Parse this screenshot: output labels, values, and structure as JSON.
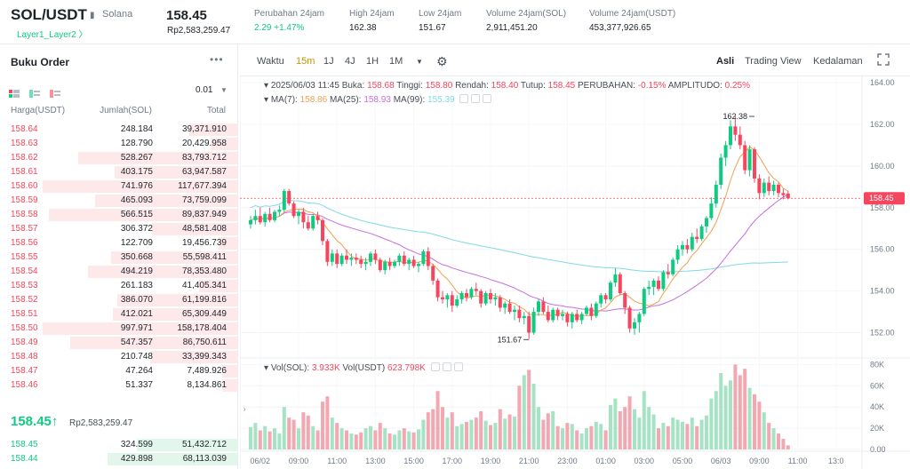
{
  "header": {
    "pair": "SOL/USDT",
    "name": "Solana",
    "tag": "Layer1_Layer2 〉",
    "price": "158.45",
    "price_idr": "Rp2,583,259.47",
    "stats": [
      {
        "label": "Perubahan 24jam",
        "value": "2.29 +1.47%",
        "color": "#0ecb81"
      },
      {
        "label": "High 24jam",
        "value": "162.38",
        "color": "#1e2329"
      },
      {
        "label": "Low 24jam",
        "value": "151.67",
        "color": "#1e2329"
      },
      {
        "label": "Volume 24jam(SOL)",
        "value": "2,911,451.20",
        "color": "#1e2329"
      },
      {
        "label": "Volume 24jam(USDT)",
        "value": "453,377,926.65",
        "color": "#1e2329"
      }
    ]
  },
  "orderbook": {
    "title": "Buku Order",
    "more": "•••",
    "precision": "0.01",
    "col_price": "Harga(USDT)",
    "col_amount": "Jumlah(SOL)",
    "col_total": "Total",
    "asks": [
      {
        "p": "158.64",
        "a": "248.184",
        "t": "39,371.910",
        "d": 0.25
      },
      {
        "p": "158.63",
        "a": "128.790",
        "t": "20,429.958",
        "d": 0.14
      },
      {
        "p": "158.62",
        "a": "528.267",
        "t": "83,793.712",
        "d": 0.82
      },
      {
        "p": "158.61",
        "a": "403.175",
        "t": "63,947.587",
        "d": 0.63
      },
      {
        "p": "158.60",
        "a": "741.976",
        "t": "117,677.394",
        "d": 1.0
      },
      {
        "p": "158.59",
        "a": "465.093",
        "t": "73,759.099",
        "d": 0.73
      },
      {
        "p": "158.58",
        "a": "566.515",
        "t": "89,837.949",
        "d": 0.97
      },
      {
        "p": "158.57",
        "a": "306.372",
        "t": "48,581.408",
        "d": 0.44
      },
      {
        "p": "158.56",
        "a": "122.709",
        "t": "19,456.739",
        "d": 0.1
      },
      {
        "p": "158.55",
        "a": "350.668",
        "t": "55,598.411",
        "d": 0.65
      },
      {
        "p": "158.54",
        "a": "494.219",
        "t": "78,353.480",
        "d": 0.77
      },
      {
        "p": "158.53",
        "a": "261.183",
        "t": "41,405.341",
        "d": 0.2
      },
      {
        "p": "158.52",
        "a": "386.070",
        "t": "61,199.816",
        "d": 0.62
      },
      {
        "p": "158.51",
        "a": "412.021",
        "t": "65,309.449",
        "d": 0.64
      },
      {
        "p": "158.50",
        "a": "997.971",
        "t": "158,178.404",
        "d": 1.0
      },
      {
        "p": "158.49",
        "a": "547.357",
        "t": "86,750.611",
        "d": 0.86
      },
      {
        "p": "158.48",
        "a": "210.748",
        "t": "33,399.343",
        "d": 0.45
      },
      {
        "p": "158.47",
        "a": "47.264",
        "t": "7,489.926",
        "d": 0.08
      },
      {
        "p": "158.46",
        "a": "51.337",
        "t": "8,134.861",
        "d": 0.08
      }
    ],
    "last_price": "158.45↑",
    "last_price_idr": "Rp2,583,259.47",
    "bids": [
      {
        "p": "158.45",
        "a": "324.599",
        "t": "51,432.712",
        "d": 0.52
      },
      {
        "p": "158.44",
        "a": "429.898",
        "t": "68,113.039",
        "d": 0.67
      }
    ]
  },
  "toolbar": {
    "time_label": "Waktu",
    "intervals": [
      "15m",
      "1J",
      "4J",
      "1H",
      "1M"
    ],
    "active_interval": "15m",
    "views": [
      "Asli",
      "Trading View",
      "Kedalaman"
    ],
    "active_view": "Asli"
  },
  "chart_data": {
    "type": "candlestick",
    "ohlc_label": {
      "date": "2025/06/03 11:45",
      "open_label": "Buka:",
      "open": "158.68",
      "high_label": "Tinggi:",
      "high": "158.80",
      "low_label": "Rendah:",
      "low": "158.40",
      "close_label": "Tutup:",
      "close": "158.45",
      "change_label": "PERUBAHAN:",
      "change": "-0.15%",
      "amp_label": "AMPLITUDO:",
      "amp": "0.25%"
    },
    "ma": [
      {
        "label": "MA(7):",
        "value": "158.86",
        "color": "#f0a050"
      },
      {
        "label": "MA(25):",
        "value": "158.93",
        "color": "#c86ee0"
      },
      {
        "label": "MA(99):",
        "value": "155.39",
        "color": "#7fd9e6"
      }
    ],
    "vol_label": {
      "sol_label": "Vol(SOL):",
      "sol": "3.933K",
      "usdt_label": "Vol(USDT)",
      "usdt": "623.798K"
    },
    "price_axis": [
      "164.00",
      "162.00",
      "160.00",
      "158.00",
      "156.00",
      "154.00",
      "152.00"
    ],
    "price_ticks": [
      164,
      162,
      160,
      158,
      156,
      154,
      152
    ],
    "price_range": [
      151.0,
      164.3
    ],
    "vol_axis": [
      "80K",
      "60K",
      "40K",
      "20K",
      "0.00"
    ],
    "vol_ticks": [
      80000,
      60000,
      40000,
      20000,
      0
    ],
    "vol_range": [
      0,
      82000
    ],
    "time_axis": [
      "06/02",
      "09:00",
      "11:00",
      "13:00",
      "15:00",
      "17:00",
      "19:00",
      "21:00",
      "23:00",
      "01:00",
      "03:00",
      "05:00",
      "06/03",
      "09:00",
      "11:00",
      "13:0"
    ],
    "time_tick_candle": [
      2,
      10,
      18,
      26,
      34,
      42,
      50,
      58,
      66,
      74,
      82,
      90,
      98,
      106,
      114,
      122
    ],
    "current_price": "158.45",
    "current_price_value": 158.45,
    "high_mark": "162.38",
    "high_mark_index": 105,
    "high_mark_value": 162.38,
    "low_mark": "151.67",
    "low_mark_index": 58,
    "low_mark_value": 151.67,
    "ma99_end": 155.39,
    "candles": [
      {
        "o": 157.2,
        "h": 157.6,
        "l": 157.0,
        "c": 157.4,
        "v": 21000
      },
      {
        "o": 157.4,
        "h": 157.9,
        "l": 157.2,
        "c": 157.6,
        "v": 25000
      },
      {
        "o": 157.6,
        "h": 158.0,
        "l": 157.2,
        "c": 157.3,
        "v": 18000
      },
      {
        "o": 157.3,
        "h": 157.8,
        "l": 157.1,
        "c": 157.7,
        "v": 22000
      },
      {
        "o": 157.7,
        "h": 158.0,
        "l": 157.3,
        "c": 157.4,
        "v": 17000
      },
      {
        "o": 157.4,
        "h": 157.9,
        "l": 157.3,
        "c": 157.8,
        "v": 20000
      },
      {
        "o": 157.8,
        "h": 158.1,
        "l": 157.6,
        "c": 157.9,
        "v": 15000
      },
      {
        "o": 157.9,
        "h": 158.9,
        "l": 157.8,
        "c": 158.8,
        "v": 40000
      },
      {
        "o": 158.8,
        "h": 158.9,
        "l": 158.1,
        "c": 158.2,
        "v": 30000
      },
      {
        "o": 158.2,
        "h": 158.3,
        "l": 157.5,
        "c": 157.6,
        "v": 28000
      },
      {
        "o": 157.6,
        "h": 157.9,
        "l": 157.2,
        "c": 157.8,
        "v": 20000
      },
      {
        "o": 157.8,
        "h": 158.0,
        "l": 157.0,
        "c": 157.3,
        "v": 35000
      },
      {
        "o": 157.3,
        "h": 157.6,
        "l": 156.9,
        "c": 157.0,
        "v": 32000
      },
      {
        "o": 157.0,
        "h": 157.7,
        "l": 156.9,
        "c": 157.6,
        "v": 22000
      },
      {
        "o": 157.6,
        "h": 157.8,
        "l": 157.2,
        "c": 157.4,
        "v": 18000
      },
      {
        "o": 157.4,
        "h": 157.5,
        "l": 156.2,
        "c": 156.4,
        "v": 45000
      },
      {
        "o": 156.4,
        "h": 156.5,
        "l": 155.2,
        "c": 155.4,
        "v": 50000
      },
      {
        "o": 155.4,
        "h": 156.0,
        "l": 155.2,
        "c": 155.8,
        "v": 30000
      },
      {
        "o": 155.8,
        "h": 156.0,
        "l": 155.1,
        "c": 155.3,
        "v": 25000
      },
      {
        "o": 155.3,
        "h": 155.8,
        "l": 155.2,
        "c": 155.7,
        "v": 20000
      },
      {
        "o": 155.7,
        "h": 156.0,
        "l": 155.3,
        "c": 155.5,
        "v": 18000
      },
      {
        "o": 155.5,
        "h": 155.8,
        "l": 155.2,
        "c": 155.6,
        "v": 15000
      },
      {
        "o": 155.6,
        "h": 155.8,
        "l": 155.3,
        "c": 155.5,
        "v": 14000
      },
      {
        "o": 155.5,
        "h": 155.7,
        "l": 155.1,
        "c": 155.3,
        "v": 16000
      },
      {
        "o": 155.3,
        "h": 155.6,
        "l": 155.0,
        "c": 155.4,
        "v": 20000
      },
      {
        "o": 155.4,
        "h": 155.9,
        "l": 155.2,
        "c": 155.8,
        "v": 22000
      },
      {
        "o": 155.8,
        "h": 156.0,
        "l": 155.3,
        "c": 155.5,
        "v": 18000
      },
      {
        "o": 155.5,
        "h": 155.6,
        "l": 154.9,
        "c": 155.0,
        "v": 25000
      },
      {
        "o": 155.0,
        "h": 155.5,
        "l": 154.8,
        "c": 155.4,
        "v": 20000
      },
      {
        "o": 155.4,
        "h": 155.6,
        "l": 155.0,
        "c": 155.2,
        "v": 15000
      },
      {
        "o": 155.2,
        "h": 155.5,
        "l": 155.1,
        "c": 155.4,
        "v": 14000
      },
      {
        "o": 155.4,
        "h": 155.8,
        "l": 155.2,
        "c": 155.7,
        "v": 18000
      },
      {
        "o": 155.7,
        "h": 155.9,
        "l": 155.2,
        "c": 155.3,
        "v": 20000
      },
      {
        "o": 155.3,
        "h": 155.6,
        "l": 155.0,
        "c": 155.5,
        "v": 17000
      },
      {
        "o": 155.5,
        "h": 155.7,
        "l": 155.1,
        "c": 155.2,
        "v": 16000
      },
      {
        "o": 155.2,
        "h": 155.4,
        "l": 154.9,
        "c": 155.3,
        "v": 19000
      },
      {
        "o": 155.3,
        "h": 156.0,
        "l": 155.2,
        "c": 155.9,
        "v": 28000
      },
      {
        "o": 155.9,
        "h": 156.1,
        "l": 155.0,
        "c": 155.2,
        "v": 35000
      },
      {
        "o": 155.2,
        "h": 155.3,
        "l": 154.3,
        "c": 154.5,
        "v": 38000
      },
      {
        "o": 154.5,
        "h": 154.6,
        "l": 153.5,
        "c": 153.7,
        "v": 55000
      },
      {
        "o": 153.7,
        "h": 154.0,
        "l": 153.4,
        "c": 153.6,
        "v": 40000
      },
      {
        "o": 153.6,
        "h": 153.9,
        "l": 153.2,
        "c": 153.8,
        "v": 30000
      },
      {
        "o": 153.8,
        "h": 154.0,
        "l": 153.0,
        "c": 153.3,
        "v": 35000
      },
      {
        "o": 153.3,
        "h": 153.8,
        "l": 153.2,
        "c": 153.6,
        "v": 22000
      },
      {
        "o": 153.6,
        "h": 154.0,
        "l": 153.4,
        "c": 153.9,
        "v": 24000
      },
      {
        "o": 153.9,
        "h": 154.1,
        "l": 153.5,
        "c": 153.7,
        "v": 26000
      },
      {
        "o": 153.7,
        "h": 154.2,
        "l": 153.6,
        "c": 154.1,
        "v": 28000
      },
      {
        "o": 154.1,
        "h": 154.4,
        "l": 153.8,
        "c": 154.0,
        "v": 30000
      },
      {
        "o": 154.0,
        "h": 154.1,
        "l": 153.2,
        "c": 153.4,
        "v": 36000
      },
      {
        "o": 153.4,
        "h": 154.0,
        "l": 153.3,
        "c": 153.9,
        "v": 27000
      },
      {
        "o": 153.9,
        "h": 154.1,
        "l": 153.4,
        "c": 153.6,
        "v": 23000
      },
      {
        "o": 153.6,
        "h": 153.9,
        "l": 153.3,
        "c": 153.7,
        "v": 25000
      },
      {
        "o": 153.7,
        "h": 153.8,
        "l": 153.0,
        "c": 153.2,
        "v": 38000
      },
      {
        "o": 153.2,
        "h": 153.5,
        "l": 152.9,
        "c": 153.4,
        "v": 29000
      },
      {
        "o": 153.4,
        "h": 153.6,
        "l": 152.9,
        "c": 153.0,
        "v": 33000
      },
      {
        "o": 153.0,
        "h": 153.3,
        "l": 152.6,
        "c": 153.1,
        "v": 31000
      },
      {
        "o": 153.1,
        "h": 153.3,
        "l": 152.5,
        "c": 152.7,
        "v": 60000
      },
      {
        "o": 152.7,
        "h": 153.0,
        "l": 152.4,
        "c": 152.8,
        "v": 70000
      },
      {
        "o": 152.8,
        "h": 153.0,
        "l": 151.7,
        "c": 152.0,
        "v": 75000
      },
      {
        "o": 152.0,
        "h": 153.2,
        "l": 151.9,
        "c": 153.0,
        "v": 62000
      },
      {
        "o": 153.0,
        "h": 153.6,
        "l": 152.8,
        "c": 153.5,
        "v": 40000
      },
      {
        "o": 153.5,
        "h": 153.7,
        "l": 152.9,
        "c": 153.0,
        "v": 28000
      },
      {
        "o": 153.0,
        "h": 153.3,
        "l": 152.5,
        "c": 152.6,
        "v": 34000
      },
      {
        "o": 152.6,
        "h": 153.2,
        "l": 152.5,
        "c": 153.1,
        "v": 36000
      },
      {
        "o": 153.1,
        "h": 153.2,
        "l": 152.6,
        "c": 152.8,
        "v": 22000
      },
      {
        "o": 152.8,
        "h": 153.1,
        "l": 152.6,
        "c": 152.9,
        "v": 20000
      },
      {
        "o": 152.9,
        "h": 153.0,
        "l": 152.3,
        "c": 152.5,
        "v": 25000
      },
      {
        "o": 152.5,
        "h": 153.0,
        "l": 152.2,
        "c": 152.9,
        "v": 24000
      },
      {
        "o": 152.9,
        "h": 153.1,
        "l": 152.5,
        "c": 152.6,
        "v": 18000
      },
      {
        "o": 152.6,
        "h": 153.0,
        "l": 152.4,
        "c": 152.9,
        "v": 15000
      },
      {
        "o": 152.9,
        "h": 153.3,
        "l": 152.8,
        "c": 153.2,
        "v": 20000
      },
      {
        "o": 153.2,
        "h": 153.4,
        "l": 152.6,
        "c": 152.8,
        "v": 22000
      },
      {
        "o": 152.8,
        "h": 153.5,
        "l": 152.7,
        "c": 153.4,
        "v": 26000
      },
      {
        "o": 153.4,
        "h": 153.9,
        "l": 153.2,
        "c": 153.8,
        "v": 24000
      },
      {
        "o": 153.8,
        "h": 153.9,
        "l": 153.4,
        "c": 153.6,
        "v": 18000
      },
      {
        "o": 153.6,
        "h": 154.5,
        "l": 153.5,
        "c": 154.4,
        "v": 42000
      },
      {
        "o": 154.4,
        "h": 155.1,
        "l": 154.2,
        "c": 154.8,
        "v": 48000
      },
      {
        "o": 154.8,
        "h": 154.9,
        "l": 153.8,
        "c": 153.9,
        "v": 36000
      },
      {
        "o": 153.9,
        "h": 154.0,
        "l": 152.9,
        "c": 153.2,
        "v": 40000
      },
      {
        "o": 153.2,
        "h": 153.3,
        "l": 152.0,
        "c": 152.2,
        "v": 50000
      },
      {
        "o": 152.2,
        "h": 152.7,
        "l": 151.9,
        "c": 152.5,
        "v": 38000
      },
      {
        "o": 152.5,
        "h": 153.0,
        "l": 152.0,
        "c": 152.9,
        "v": 30000
      },
      {
        "o": 152.9,
        "h": 154.2,
        "l": 152.8,
        "c": 154.1,
        "v": 55000
      },
      {
        "o": 154.1,
        "h": 154.5,
        "l": 153.8,
        "c": 154.2,
        "v": 40000
      },
      {
        "o": 154.2,
        "h": 154.6,
        "l": 153.8,
        "c": 154.5,
        "v": 33000
      },
      {
        "o": 154.5,
        "h": 154.7,
        "l": 154.0,
        "c": 154.1,
        "v": 20000
      },
      {
        "o": 154.1,
        "h": 155.0,
        "l": 154.0,
        "c": 154.9,
        "v": 25000
      },
      {
        "o": 154.9,
        "h": 155.3,
        "l": 154.6,
        "c": 154.8,
        "v": 22000
      },
      {
        "o": 154.8,
        "h": 155.6,
        "l": 154.7,
        "c": 155.5,
        "v": 30000
      },
      {
        "o": 155.5,
        "h": 156.2,
        "l": 155.3,
        "c": 156.0,
        "v": 28000
      },
      {
        "o": 156.0,
        "h": 156.4,
        "l": 155.7,
        "c": 156.2,
        "v": 26000
      },
      {
        "o": 156.2,
        "h": 156.5,
        "l": 155.8,
        "c": 156.0,
        "v": 24000
      },
      {
        "o": 156.0,
        "h": 156.8,
        "l": 155.9,
        "c": 156.6,
        "v": 30000
      },
      {
        "o": 156.6,
        "h": 157.0,
        "l": 156.3,
        "c": 156.5,
        "v": 22000
      },
      {
        "o": 156.5,
        "h": 157.2,
        "l": 156.4,
        "c": 157.1,
        "v": 28000
      },
      {
        "o": 157.1,
        "h": 157.6,
        "l": 156.8,
        "c": 157.5,
        "v": 32000
      },
      {
        "o": 157.5,
        "h": 158.5,
        "l": 157.4,
        "c": 158.2,
        "v": 48000
      },
      {
        "o": 158.2,
        "h": 159.3,
        "l": 158.0,
        "c": 159.1,
        "v": 55000
      },
      {
        "o": 159.1,
        "h": 160.6,
        "l": 158.9,
        "c": 160.4,
        "v": 72000
      },
      {
        "o": 160.4,
        "h": 161.2,
        "l": 160.0,
        "c": 161.0,
        "v": 60000
      },
      {
        "o": 161.0,
        "h": 162.2,
        "l": 160.8,
        "c": 161.9,
        "v": 65000
      },
      {
        "o": 161.9,
        "h": 162.38,
        "l": 161.2,
        "c": 161.5,
        "v": 80000
      },
      {
        "o": 161.5,
        "h": 161.9,
        "l": 160.8,
        "c": 161.0,
        "v": 70000
      },
      {
        "o": 161.0,
        "h": 161.2,
        "l": 159.6,
        "c": 159.8,
        "v": 76000
      },
      {
        "o": 159.8,
        "h": 161.0,
        "l": 159.5,
        "c": 160.8,
        "v": 58000
      },
      {
        "o": 160.8,
        "h": 160.9,
        "l": 159.2,
        "c": 159.4,
        "v": 52000
      },
      {
        "o": 159.4,
        "h": 159.6,
        "l": 158.4,
        "c": 158.7,
        "v": 45000
      },
      {
        "o": 158.7,
        "h": 159.4,
        "l": 158.5,
        "c": 159.2,
        "v": 35000
      },
      {
        "o": 159.2,
        "h": 159.5,
        "l": 158.6,
        "c": 158.8,
        "v": 25000
      },
      {
        "o": 158.8,
        "h": 159.3,
        "l": 158.6,
        "c": 159.1,
        "v": 20000
      },
      {
        "o": 159.1,
        "h": 159.2,
        "l": 158.5,
        "c": 158.7,
        "v": 15000
      },
      {
        "o": 158.7,
        "h": 158.9,
        "l": 158.4,
        "c": 158.6,
        "v": 10000
      },
      {
        "o": 158.68,
        "h": 158.8,
        "l": 158.4,
        "c": 158.45,
        "v": 3933
      }
    ]
  }
}
